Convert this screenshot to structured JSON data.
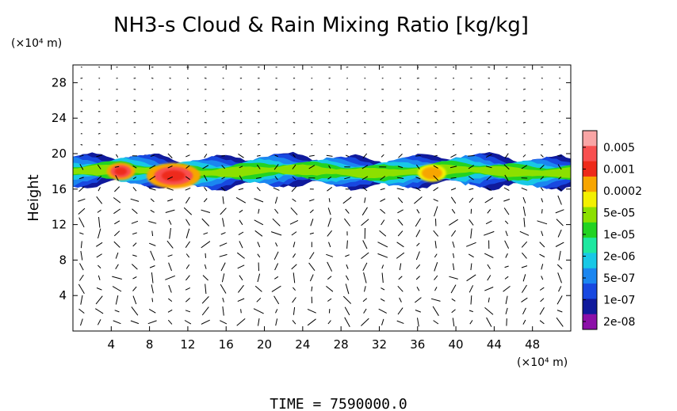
{
  "chart_data": {
    "type": "heatmap",
    "title": "NH3-s Cloud & Rain Mixing Ratio [kg/kg]",
    "xlabel": "",
    "ylabel": "Height",
    "x_unit": "(×10⁴ m)",
    "y_unit": "(×10⁴ m)",
    "xlim": [
      0,
      52
    ],
    "ylim": [
      0,
      30
    ],
    "xticks": [
      4,
      8,
      12,
      16,
      20,
      24,
      28,
      32,
      36,
      40,
      44,
      48
    ],
    "yticks": [
      4,
      8,
      12,
      16,
      20,
      24,
      28
    ],
    "colorbar": {
      "labels": [
        "0.005",
        "0.001",
        "0.0002",
        "5e-05",
        "1e-05",
        "2e-06",
        "5e-07",
        "1e-07",
        "2e-08"
      ],
      "colors": [
        "#f9a5a5",
        "#f85050",
        "#ee2a1a",
        "#f7a500",
        "#f3f000",
        "#8ce000",
        "#22d322",
        "#1ee8a0",
        "#18c8e6",
        "#1b86f0",
        "#1848e0",
        "#101a9c",
        "#8c10a8"
      ]
    },
    "cloud_layer": {
      "base_height": 16,
      "top_height": 20,
      "peak_regions": [
        {
          "x": 5,
          "y": 18,
          "level": "0.001"
        },
        {
          "x": 10.5,
          "y": 17.5,
          "level": "0.001"
        },
        {
          "x": 37.5,
          "y": 17.8,
          "level": "0.0002"
        }
      ]
    },
    "vectors": "wind vectors plotted across domain"
  },
  "footer": {
    "time_text": "TIME  =  7590000.0"
  }
}
